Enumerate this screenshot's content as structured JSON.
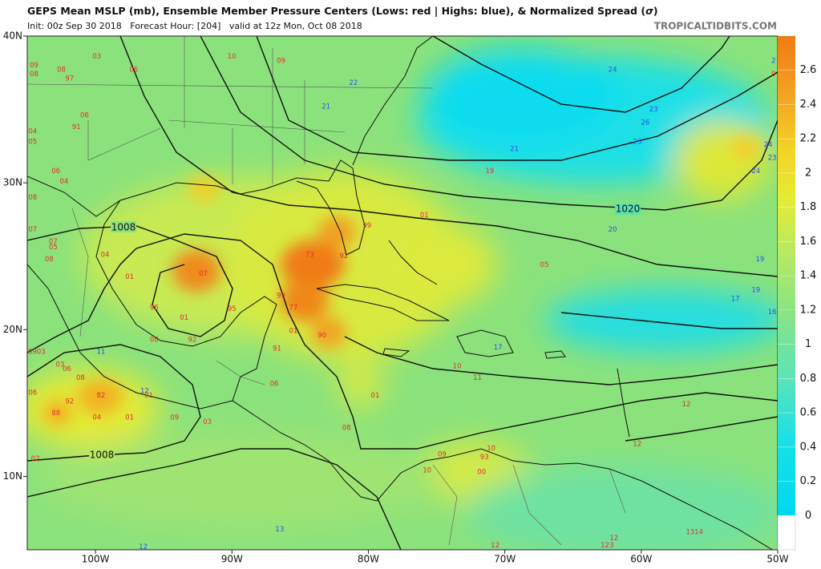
{
  "header": {
    "title": "GEPS Mean MSLP (mb), Ensemble Member Pressure Centers (Lows: red | Highs: blue), & Normalized Spread (",
    "sigma": "σ",
    "title_end": ")",
    "subtitle": "Init: 00z Sep 30 2018   Forecast Hour: [204]   valid at 12z Mon, Oct 08 2018",
    "credit": "TROPICALTIDBITS.COM"
  },
  "map": {
    "xlim": [
      -105,
      -50
    ],
    "ylim": [
      5,
      40
    ],
    "xticks": [
      {
        "value": -100,
        "label": "100W"
      },
      {
        "value": -90,
        "label": "90W"
      },
      {
        "value": -80,
        "label": "80W"
      },
      {
        "value": -70,
        "label": "70W"
      },
      {
        "value": -60,
        "label": "60W"
      },
      {
        "value": -50,
        "label": "50W"
      }
    ],
    "yticks": [
      {
        "value": 40,
        "label": "40N"
      },
      {
        "value": 30,
        "label": "30N"
      },
      {
        "value": 20,
        "label": "20N"
      },
      {
        "value": 10,
        "label": "10N"
      }
    ],
    "isobar_labels": [
      "1008",
      "1020",
      "1008"
    ],
    "low_color": "#e0302c",
    "high_color": "#2a50e6",
    "centers": [
      {
        "label": "09",
        "kind": "low",
        "lon": -104.5,
        "lat": 38.0
      },
      {
        "label": "08",
        "kind": "low",
        "lon": -104.5,
        "lat": 37.4
      },
      {
        "label": "08",
        "kind": "low",
        "lon": -102.5,
        "lat": 37.7
      },
      {
        "label": "97",
        "kind": "low",
        "lon": -101.9,
        "lat": 37.1
      },
      {
        "label": "03",
        "kind": "low",
        "lon": -99.9,
        "lat": 38.6
      },
      {
        "label": "06",
        "kind": "low",
        "lon": -97.2,
        "lat": 37.7
      },
      {
        "label": "06",
        "kind": "low",
        "lon": -100.8,
        "lat": 34.6
      },
      {
        "label": "91",
        "kind": "low",
        "lon": -101.4,
        "lat": 33.8
      },
      {
        "label": "04",
        "kind": "low",
        "lon": -104.6,
        "lat": 33.5
      },
      {
        "label": "05",
        "kind": "low",
        "lon": -104.6,
        "lat": 32.8
      },
      {
        "label": "06",
        "kind": "low",
        "lon": -102.9,
        "lat": 30.8
      },
      {
        "label": "04",
        "kind": "low",
        "lon": -102.3,
        "lat": 30.1
      },
      {
        "label": "08",
        "kind": "low",
        "lon": -104.6,
        "lat": 29.0
      },
      {
        "label": "07",
        "kind": "low",
        "lon": -104.6,
        "lat": 26.8
      },
      {
        "label": "07",
        "kind": "low",
        "lon": -103.1,
        "lat": 26.0
      },
      {
        "label": "05",
        "kind": "low",
        "lon": -103.1,
        "lat": 25.6
      },
      {
        "label": "08",
        "kind": "low",
        "lon": -103.4,
        "lat": 24.8
      },
      {
        "label": "04",
        "kind": "low",
        "lon": -99.3,
        "lat": 25.1
      },
      {
        "label": "01",
        "kind": "low",
        "lon": -97.5,
        "lat": 23.6
      },
      {
        "label": "07",
        "kind": "low",
        "lon": -92.1,
        "lat": 23.8
      },
      {
        "label": "96",
        "kind": "low",
        "lon": -95.7,
        "lat": 21.5
      },
      {
        "label": "01",
        "kind": "low",
        "lon": -93.5,
        "lat": 20.8
      },
      {
        "label": "95",
        "kind": "low",
        "lon": -90.0,
        "lat": 21.4
      },
      {
        "label": "92",
        "kind": "low",
        "lon": -92.9,
        "lat": 19.3
      },
      {
        "label": "08",
        "kind": "low",
        "lon": -95.7,
        "lat": 19.3
      },
      {
        "label": "73",
        "kind": "low",
        "lon": -84.3,
        "lat": 25.1
      },
      {
        "label": "92",
        "kind": "low",
        "lon": -81.8,
        "lat": 25.0
      },
      {
        "label": "99",
        "kind": "low",
        "lon": -80.1,
        "lat": 27.1
      },
      {
        "label": "01",
        "kind": "low",
        "lon": -75.9,
        "lat": 27.8
      },
      {
        "label": "99",
        "kind": "low",
        "lon": -86.4,
        "lat": 22.3
      },
      {
        "label": "77",
        "kind": "low",
        "lon": -85.5,
        "lat": 21.5
      },
      {
        "label": "01",
        "kind": "low",
        "lon": -85.5,
        "lat": 19.9
      },
      {
        "label": "90",
        "kind": "low",
        "lon": -83.4,
        "lat": 19.6
      },
      {
        "label": "91",
        "kind": "low",
        "lon": -86.7,
        "lat": 18.7
      },
      {
        "label": "0903",
        "kind": "low",
        "lon": -104.3,
        "lat": 18.5
      },
      {
        "label": "03",
        "kind": "low",
        "lon": -102.6,
        "lat": 17.6
      },
      {
        "label": "06",
        "kind": "low",
        "lon": -102.1,
        "lat": 17.3
      },
      {
        "label": "08",
        "kind": "low",
        "lon": -101.1,
        "lat": 16.7
      },
      {
        "label": "06",
        "kind": "low",
        "lon": -104.6,
        "lat": 15.7
      },
      {
        "label": "92",
        "kind": "low",
        "lon": -101.9,
        "lat": 15.1
      },
      {
        "label": "82",
        "kind": "low",
        "lon": -99.6,
        "lat": 15.5
      },
      {
        "label": "01",
        "kind": "low",
        "lon": -96.1,
        "lat": 15.5
      },
      {
        "label": "88",
        "kind": "low",
        "lon": -102.9,
        "lat": 14.3
      },
      {
        "label": "04",
        "kind": "low",
        "lon": -99.9,
        "lat": 14.0
      },
      {
        "label": "01",
        "kind": "low",
        "lon": -97.5,
        "lat": 14.0
      },
      {
        "label": "09",
        "kind": "low",
        "lon": -94.2,
        "lat": 14.0
      },
      {
        "label": "03",
        "kind": "low",
        "lon": -91.8,
        "lat": 13.7
      },
      {
        "label": "06",
        "kind": "low",
        "lon": -86.9,
        "lat": 16.3
      },
      {
        "label": "01",
        "kind": "low",
        "lon": -79.5,
        "lat": 15.5
      },
      {
        "label": "08",
        "kind": "low",
        "lon": -81.6,
        "lat": 13.3
      },
      {
        "label": "02",
        "kind": "low",
        "lon": -104.4,
        "lat": 11.2
      },
      {
        "label": "10",
        "kind": "low",
        "lon": -90.0,
        "lat": 38.6
      },
      {
        "label": "09",
        "kind": "low",
        "lon": -86.4,
        "lat": 38.3
      },
      {
        "label": "19",
        "kind": "low",
        "lon": -71.1,
        "lat": 30.8
      },
      {
        "label": "05",
        "kind": "low",
        "lon": -67.1,
        "lat": 24.4
      },
      {
        "label": "10",
        "kind": "low",
        "lon": -73.5,
        "lat": 17.5
      },
      {
        "label": "11",
        "kind": "low",
        "lon": -72.0,
        "lat": 16.7
      },
      {
        "label": "12",
        "kind": "low",
        "lon": -56.7,
        "lat": 14.9
      },
      {
        "label": "12",
        "kind": "low",
        "lon": -60.3,
        "lat": 12.2
      },
      {
        "label": "09",
        "kind": "low",
        "lon": -74.6,
        "lat": 11.5
      },
      {
        "label": "10",
        "kind": "low",
        "lon": -75.7,
        "lat": 10.4
      },
      {
        "label": "93",
        "kind": "low",
        "lon": -71.5,
        "lat": 11.3
      },
      {
        "label": "00",
        "kind": "low",
        "lon": -71.7,
        "lat": 10.3
      },
      {
        "label": "10",
        "kind": "low",
        "lon": -71.0,
        "lat": 11.9
      },
      {
        "label": "12",
        "kind": "low",
        "lon": -70.7,
        "lat": 5.3
      },
      {
        "label": "123",
        "kind": "low",
        "lon": -62.5,
        "lat": 5.3
      },
      {
        "label": "1314",
        "kind": "low",
        "lon": -56.1,
        "lat": 6.2
      },
      {
        "label": "12",
        "kind": "low",
        "lon": -62.0,
        "lat": 5.8
      },
      {
        "label": "0",
        "kind": "low",
        "lon": -50.3,
        "lat": 37.4
      },
      {
        "label": "22",
        "kind": "high",
        "lon": -81.1,
        "lat": 36.8
      },
      {
        "label": "21",
        "kind": "high",
        "lon": -83.1,
        "lat": 35.2
      },
      {
        "label": "24",
        "kind": "high",
        "lon": -62.1,
        "lat": 37.7
      },
      {
        "label": "23",
        "kind": "high",
        "lon": -59.1,
        "lat": 35.0
      },
      {
        "label": "26",
        "kind": "high",
        "lon": -59.7,
        "lat": 34.1
      },
      {
        "label": "23",
        "kind": "high",
        "lon": -60.3,
        "lat": 32.8
      },
      {
        "label": "21",
        "kind": "high",
        "lon": -69.3,
        "lat": 32.3
      },
      {
        "label": "24",
        "kind": "high",
        "lon": -50.7,
        "lat": 32.6
      },
      {
        "label": "24",
        "kind": "high",
        "lon": -51.6,
        "lat": 30.8
      },
      {
        "label": "23",
        "kind": "high",
        "lon": -50.4,
        "lat": 31.7
      },
      {
        "label": "2",
        "kind": "high",
        "lon": -50.3,
        "lat": 38.3
      },
      {
        "label": "20",
        "kind": "high",
        "lon": -62.1,
        "lat": 26.8
      },
      {
        "label": "19",
        "kind": "high",
        "lon": -51.3,
        "lat": 24.8
      },
      {
        "label": "19",
        "kind": "high",
        "lon": -51.6,
        "lat": 22.7
      },
      {
        "label": "17",
        "kind": "high",
        "lon": -53.1,
        "lat": 22.1
      },
      {
        "label": "16",
        "kind": "high",
        "lon": -50.4,
        "lat": 21.2
      },
      {
        "label": "12",
        "kind": "high",
        "lon": -96.4,
        "lat": 15.8
      },
      {
        "label": "13",
        "kind": "high",
        "lon": -86.5,
        "lat": 6.4
      },
      {
        "label": "12",
        "kind": "high",
        "lon": -96.5,
        "lat": 5.2
      },
      {
        "label": "11",
        "kind": "high",
        "lon": -99.6,
        "lat": 18.5
      },
      {
        "label": "17",
        "kind": "high",
        "lon": -70.5,
        "lat": 18.8
      }
    ]
  },
  "colorbar": {
    "lim": [
      -0.2,
      2.8
    ],
    "ticks": [
      0,
      0.2,
      0.4,
      0.6,
      0.8,
      1,
      1.2,
      1.4,
      1.6,
      1.8,
      2,
      2.2,
      2.4,
      2.6
    ]
  }
}
